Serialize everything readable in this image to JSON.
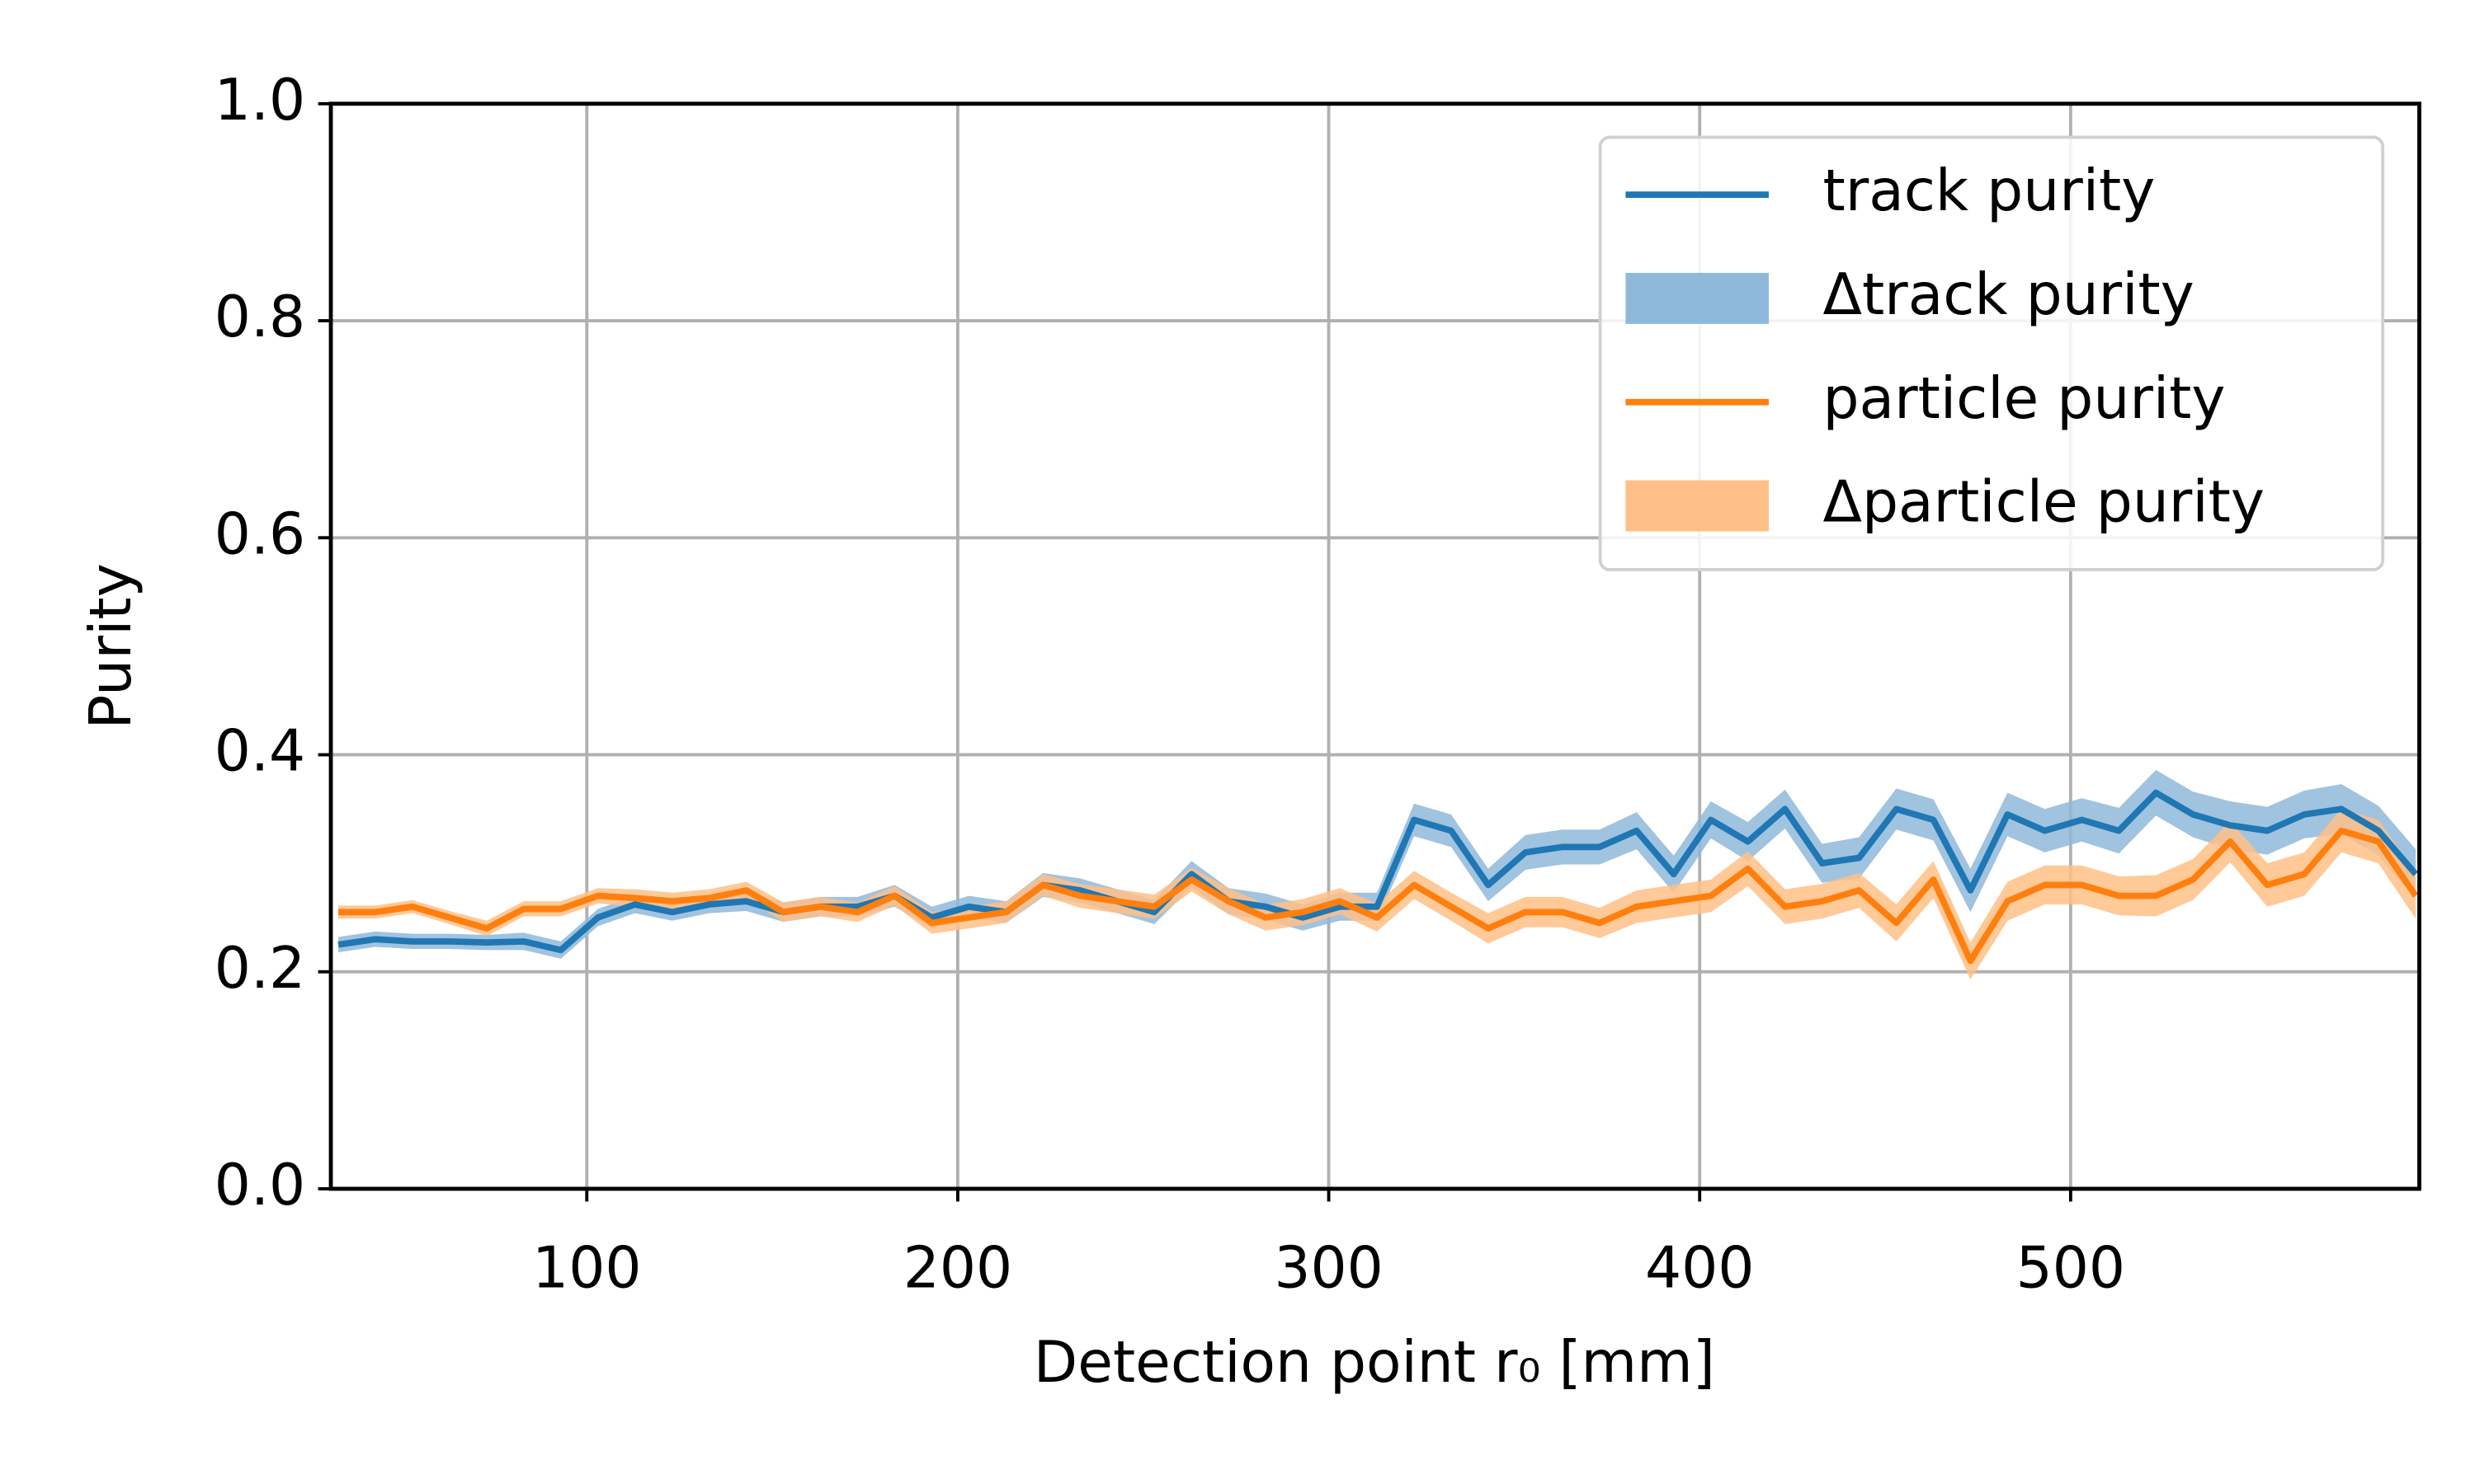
{
  "chart_data": {
    "type": "line",
    "xlabel": "Detection point r₀ [mm]",
    "ylabel": "Purity",
    "xlim": [
      31,
      594
    ],
    "ylim": [
      0,
      1
    ],
    "xticks": [
      100,
      200,
      300,
      400,
      500
    ],
    "yticks": [
      {
        "value": 0,
        "label": "0.0"
      },
      0.2,
      0.4,
      0.6,
      0.8,
      {
        "value": 1,
        "label": "1.0"
      }
    ],
    "grid": true,
    "legend": "upper right",
    "x": [
      33,
      43,
      53,
      63,
      73,
      83,
      93,
      103,
      113,
      123,
      133,
      143,
      153,
      163,
      173,
      183,
      193,
      203,
      213,
      223,
      233,
      243,
      253,
      263,
      273,
      283,
      293,
      303,
      313,
      323,
      333,
      343,
      353,
      363,
      373,
      383,
      393,
      403,
      413,
      423,
      433,
      443,
      453,
      463,
      473,
      483,
      493,
      503,
      513,
      523,
      533,
      543,
      553,
      563,
      573,
      583,
      593
    ],
    "series": [
      {
        "name": "track purity",
        "color": "#1f77b4",
        "values": [
          0.225,
          0.23,
          0.228,
          0.228,
          0.227,
          0.228,
          0.22,
          0.25,
          0.262,
          0.255,
          0.262,
          0.265,
          0.255,
          0.26,
          0.26,
          0.27,
          0.25,
          0.26,
          0.255,
          0.28,
          0.275,
          0.265,
          0.255,
          0.29,
          0.265,
          0.26,
          0.25,
          0.26,
          0.26,
          0.34,
          0.33,
          0.28,
          0.31,
          0.315,
          0.315,
          0.33,
          0.29,
          0.34,
          0.32,
          0.35,
          0.3,
          0.305,
          0.35,
          0.34,
          0.275,
          0.345,
          0.33,
          0.34,
          0.33,
          0.365,
          0.345,
          0.335,
          0.33,
          0.345,
          0.35,
          0.33,
          0.29
        ],
        "band": {
          "name": "Δtrack purity",
          "color": "#8fb9db",
          "errors": [
            0.007,
            0.007,
            0.007,
            0.007,
            0.007,
            0.008,
            0.008,
            0.008,
            0.008,
            0.008,
            0.008,
            0.009,
            0.009,
            0.009,
            0.009,
            0.01,
            0.01,
            0.01,
            0.01,
            0.011,
            0.011,
            0.011,
            0.011,
            0.012,
            0.012,
            0.012,
            0.012,
            0.013,
            0.013,
            0.015,
            0.015,
            0.015,
            0.016,
            0.016,
            0.016,
            0.017,
            0.017,
            0.017,
            0.018,
            0.018,
            0.018,
            0.019,
            0.019,
            0.019,
            0.02,
            0.02,
            0.02,
            0.02,
            0.021,
            0.021,
            0.021,
            0.022,
            0.022,
            0.022,
            0.023,
            0.023,
            0.023
          ]
        }
      },
      {
        "name": "particle purity",
        "color": "#ff7f0e",
        "values": [
          0.255,
          0.255,
          0.26,
          0.25,
          0.24,
          0.258,
          0.258,
          0.27,
          0.268,
          0.265,
          0.268,
          0.275,
          0.255,
          0.26,
          0.255,
          0.27,
          0.245,
          0.25,
          0.255,
          0.28,
          0.27,
          0.265,
          0.26,
          0.285,
          0.265,
          0.25,
          0.255,
          0.265,
          0.25,
          0.28,
          0.26,
          0.24,
          0.255,
          0.255,
          0.245,
          0.26,
          0.265,
          0.27,
          0.295,
          0.26,
          0.265,
          0.275,
          0.245,
          0.285,
          0.21,
          0.265,
          0.28,
          0.28,
          0.27,
          0.27,
          0.285,
          0.32,
          0.28,
          0.29,
          0.33,
          0.32,
          0.27
        ],
        "band": {
          "name": "Δparticle purity",
          "color": "#ffbf86",
          "errors": [
            0.006,
            0.006,
            0.006,
            0.006,
            0.007,
            0.007,
            0.007,
            0.007,
            0.008,
            0.008,
            0.008,
            0.008,
            0.009,
            0.009,
            0.009,
            0.009,
            0.01,
            0.01,
            0.01,
            0.01,
            0.011,
            0.011,
            0.011,
            0.011,
            0.012,
            0.012,
            0.012,
            0.012,
            0.013,
            0.013,
            0.013,
            0.014,
            0.014,
            0.014,
            0.014,
            0.015,
            0.015,
            0.015,
            0.016,
            0.016,
            0.016,
            0.016,
            0.017,
            0.017,
            0.017,
            0.018,
            0.018,
            0.018,
            0.018,
            0.019,
            0.019,
            0.019,
            0.02,
            0.02,
            0.02,
            0.02,
            0.021
          ]
        }
      }
    ]
  }
}
